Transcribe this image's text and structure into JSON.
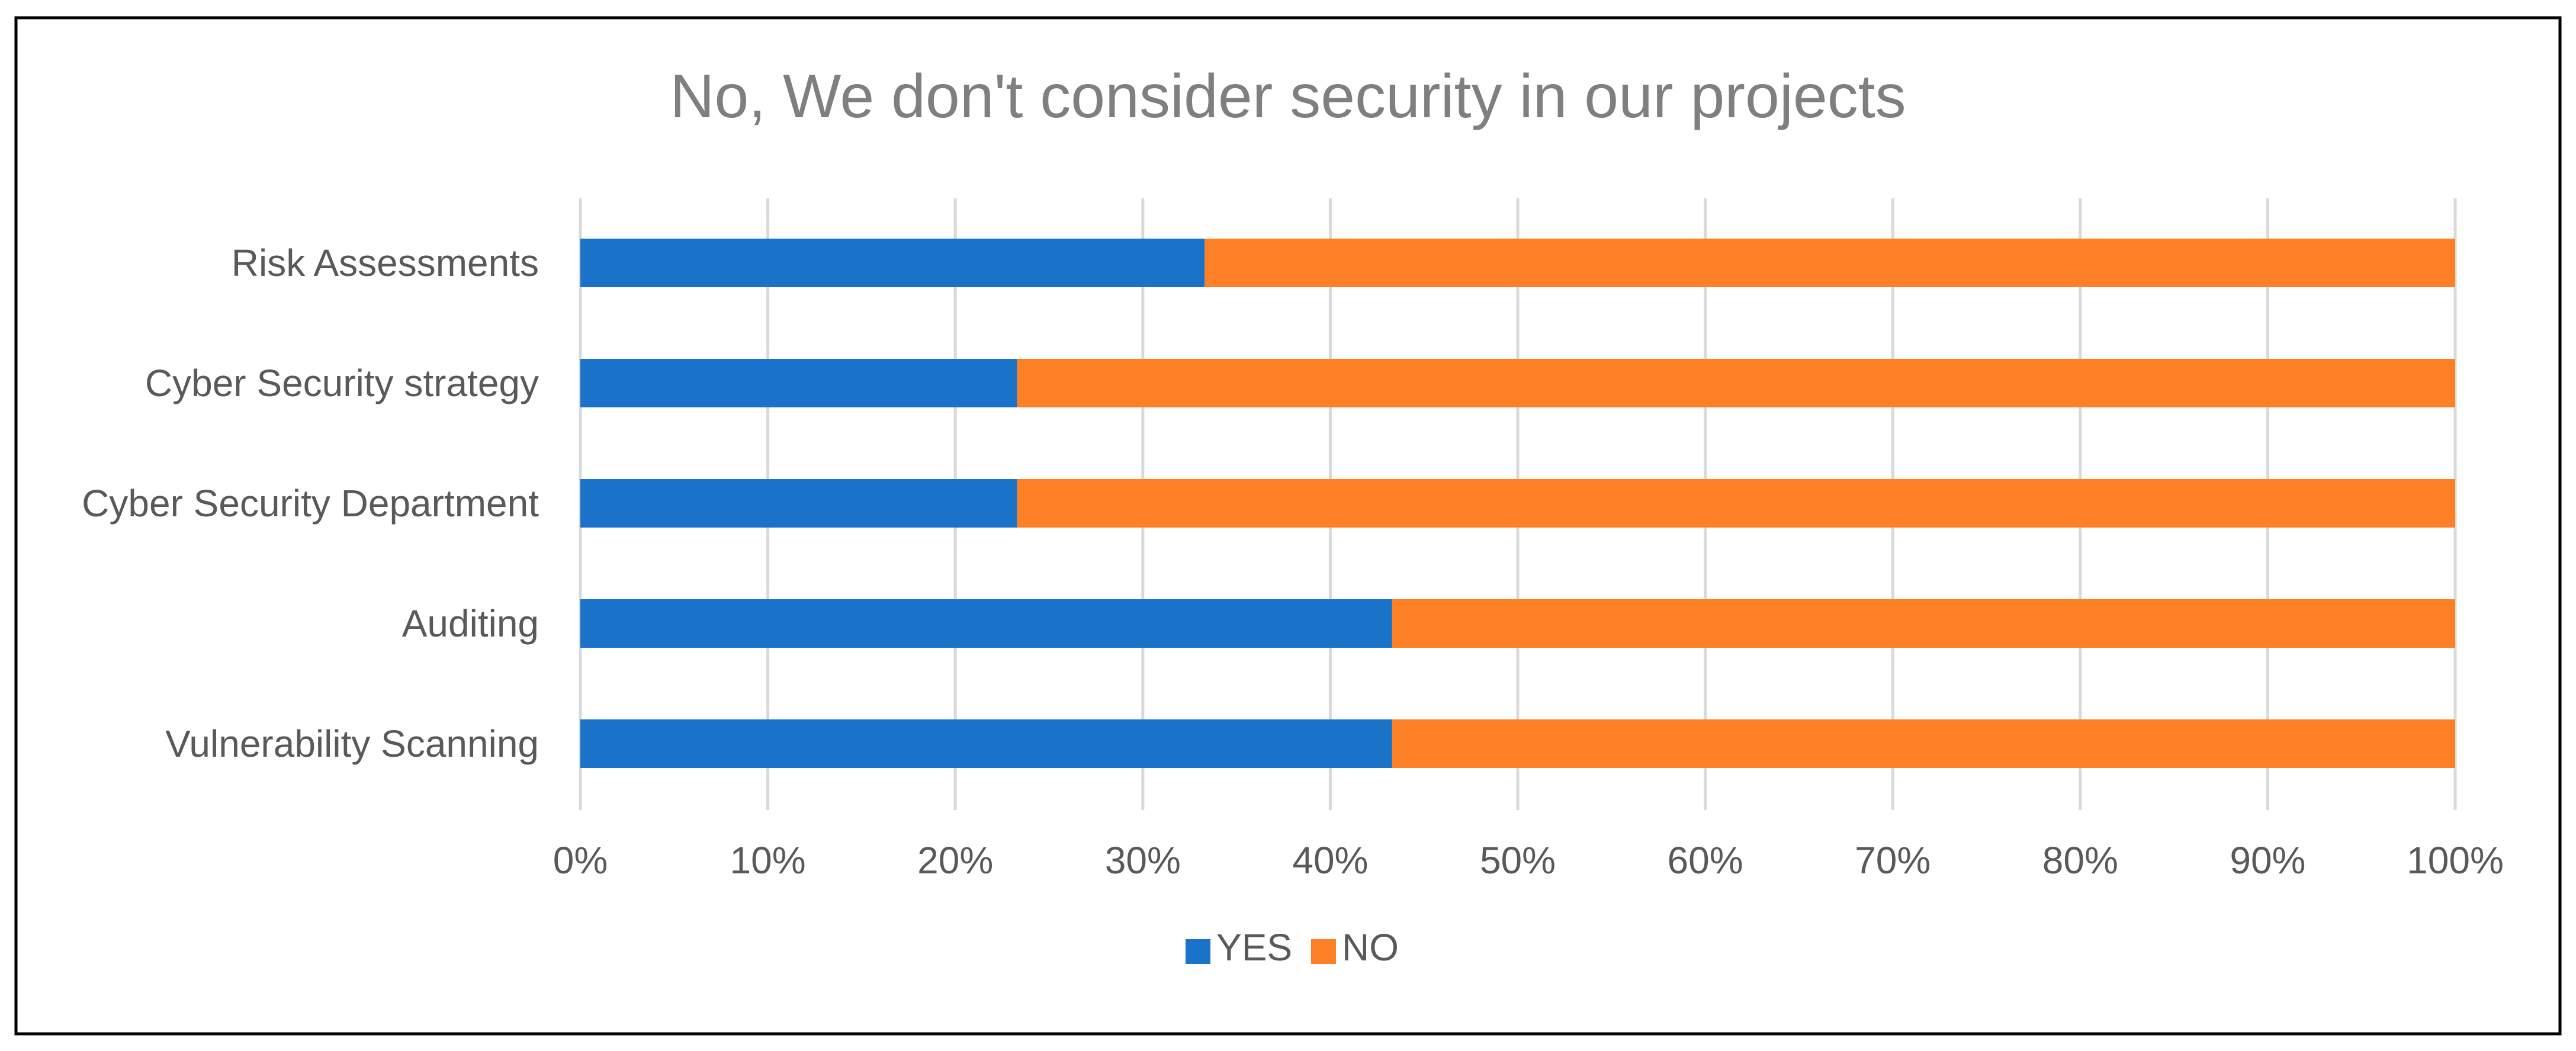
{
  "chart_data": {
    "type": "bar",
    "orientation": "horizontal",
    "stacked": "percent",
    "title": "No, We don't  consider security in our projects",
    "categories": [
      "Risk Assessments",
      "Cyber Security strategy",
      "Cyber Security Department",
      "Auditing",
      "Vulnerability Scanning"
    ],
    "series": [
      {
        "name": "YES",
        "color": "#1a73c9",
        "values": [
          33.3,
          23.3,
          23.3,
          43.3,
          43.3
        ]
      },
      {
        "name": "NO",
        "color": "#fd8026",
        "values": [
          66.7,
          76.7,
          76.7,
          56.7,
          56.7
        ]
      }
    ],
    "xlim": [
      0,
      100
    ],
    "x_tick_labels": [
      "0%",
      "10%",
      "20%",
      "30%",
      "40%",
      "50%",
      "60%",
      "70%",
      "80%",
      "90%",
      "100%"
    ],
    "grid": "vertical",
    "legend": "bottom"
  }
}
